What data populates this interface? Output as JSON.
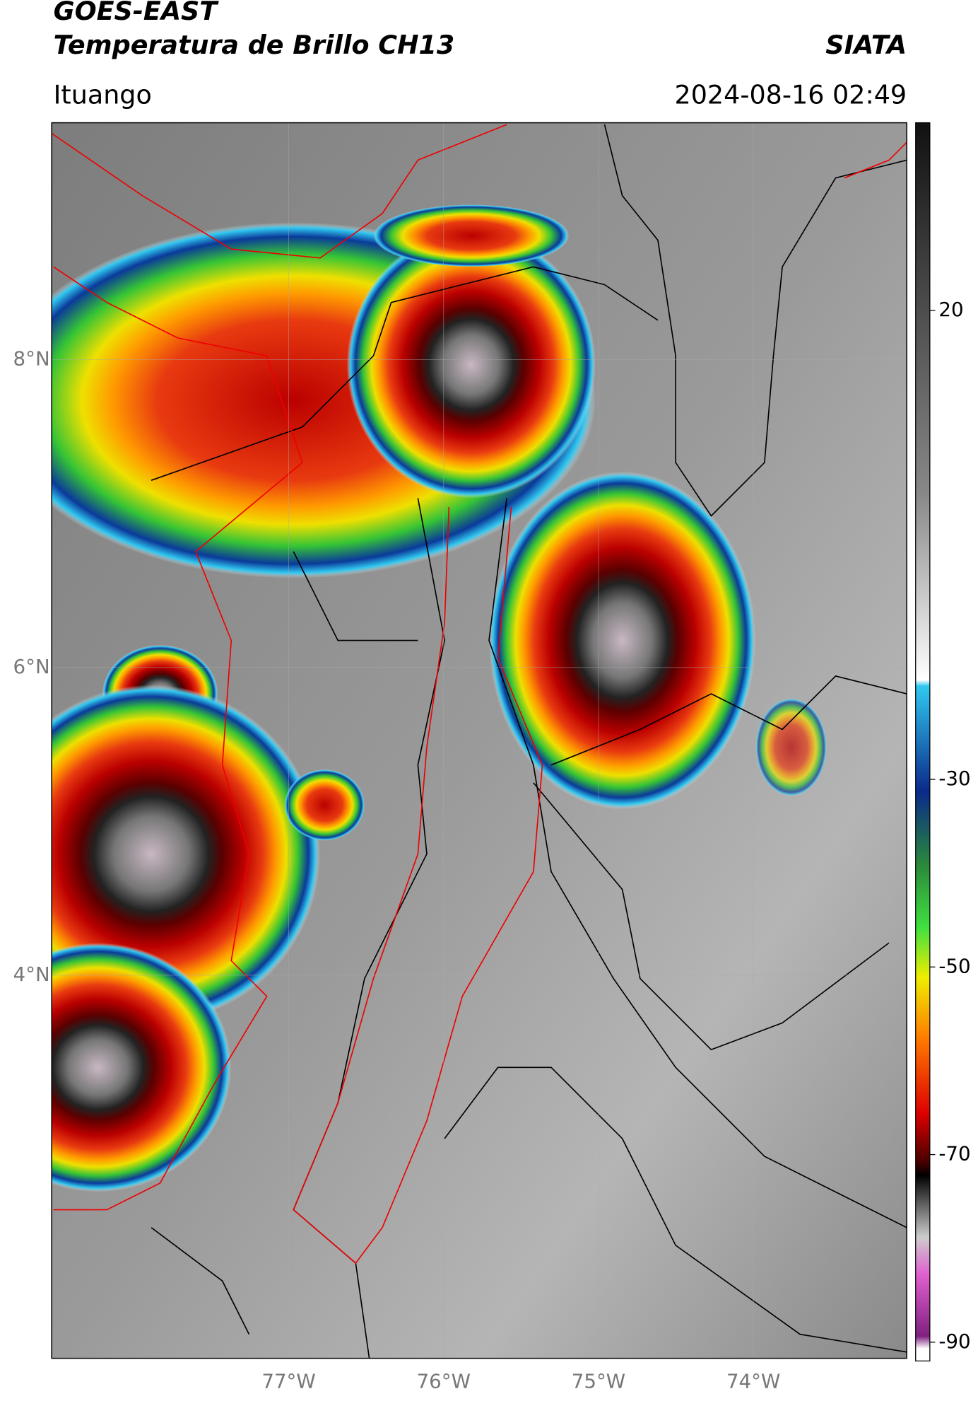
{
  "chart_data": {
    "type": "map",
    "title": "GOES-EAST",
    "subtitle": "Temperatura de Brillo CH13",
    "source": "SIATA",
    "location": "Ituango",
    "datetime": "2024-08-16 02:49",
    "xlim": [
      -78.53,
      -73.01
    ],
    "ylim": [
      1.51,
      9.54
    ],
    "xticks": [
      {
        "value": -77,
        "label": "77°W"
      },
      {
        "value": -76,
        "label": "76°W"
      },
      {
        "value": -75,
        "label": "75°W"
      },
      {
        "value": -74,
        "label": "74°W"
      }
    ],
    "yticks": [
      {
        "value": 8,
        "label": "8°N"
      },
      {
        "value": 6,
        "label": "6°N"
      },
      {
        "value": 4,
        "label": "4°N"
      }
    ],
    "grid": true,
    "colorbar": {
      "lim": [
        -92,
        40
      ],
      "ticks": [
        20,
        -30,
        -50,
        -70,
        -90
      ]
    }
  }
}
